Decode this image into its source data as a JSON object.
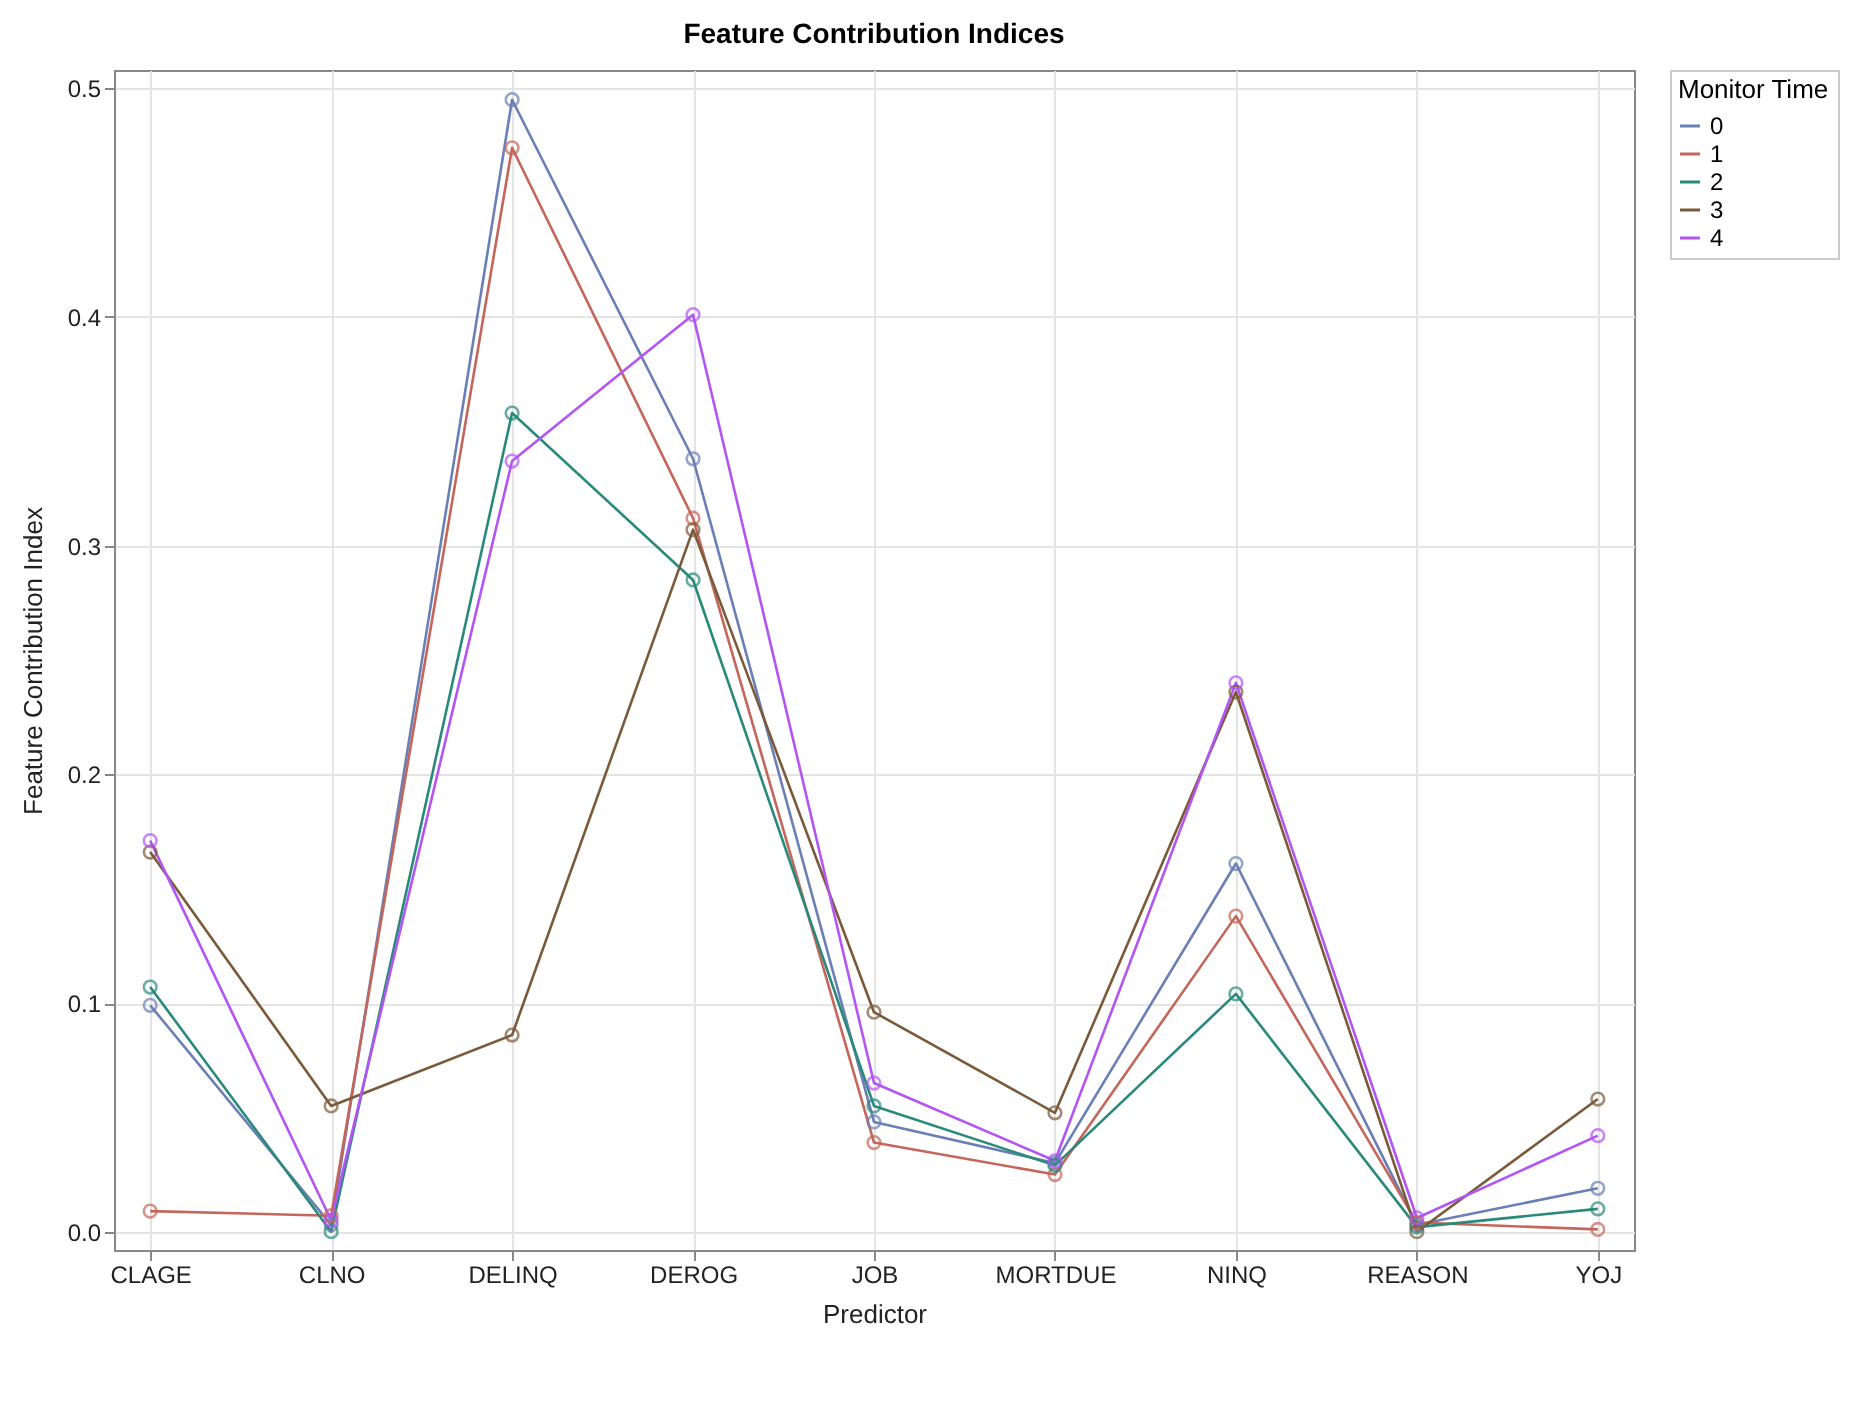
{
  "chart_data": {
    "type": "line",
    "title": "Feature Contribution Indices",
    "xlabel": "Predictor",
    "ylabel": "Feature Contribution Index",
    "legend_title": "Monitor Time",
    "categories": [
      "CLAGE",
      "CLNO",
      "DELINQ",
      "DEROG",
      "JOB",
      "MORTDUE",
      "NINQ",
      "REASON",
      "YOJ"
    ],
    "series": [
      {
        "name": "0",
        "color": "#6a7fb5",
        "values": [
          0.099,
          0.003,
          0.495,
          0.338,
          0.048,
          0.03,
          0.161,
          0.003,
          0.019
        ]
      },
      {
        "name": "1",
        "color": "#c4665a",
        "values": [
          0.009,
          0.007,
          0.474,
          0.312,
          0.039,
          0.025,
          0.138,
          0.004,
          0.001
        ]
      },
      {
        "name": "2",
        "color": "#2a8a7a",
        "values": [
          0.107,
          0.0,
          0.358,
          0.285,
          0.055,
          0.029,
          0.104,
          0.002,
          0.01
        ]
      },
      {
        "name": "3",
        "color": "#7b5a3a",
        "values": [
          0.166,
          0.055,
          0.086,
          0.307,
          0.096,
          0.052,
          0.236,
          0.0,
          0.058
        ]
      },
      {
        "name": "4",
        "color": "#b355f5",
        "values": [
          0.171,
          0.005,
          0.337,
          0.401,
          0.065,
          0.031,
          0.24,
          0.006,
          0.042
        ]
      }
    ],
    "ylim": [
      -0.008,
      0.508
    ],
    "yticks": [
      {
        "value": 0,
        "label": "0.0"
      },
      {
        "value": 0.1,
        "label": "0.1"
      },
      {
        "value": 0.2,
        "label": "0.2"
      },
      {
        "value": 0.3,
        "label": "0.3"
      },
      {
        "value": 0.4,
        "label": "0.4"
      },
      {
        "value": 0.5,
        "label": "0.5"
      }
    ],
    "grid": true,
    "legend": "right",
    "marker": "circle",
    "line_style": "solid"
  }
}
